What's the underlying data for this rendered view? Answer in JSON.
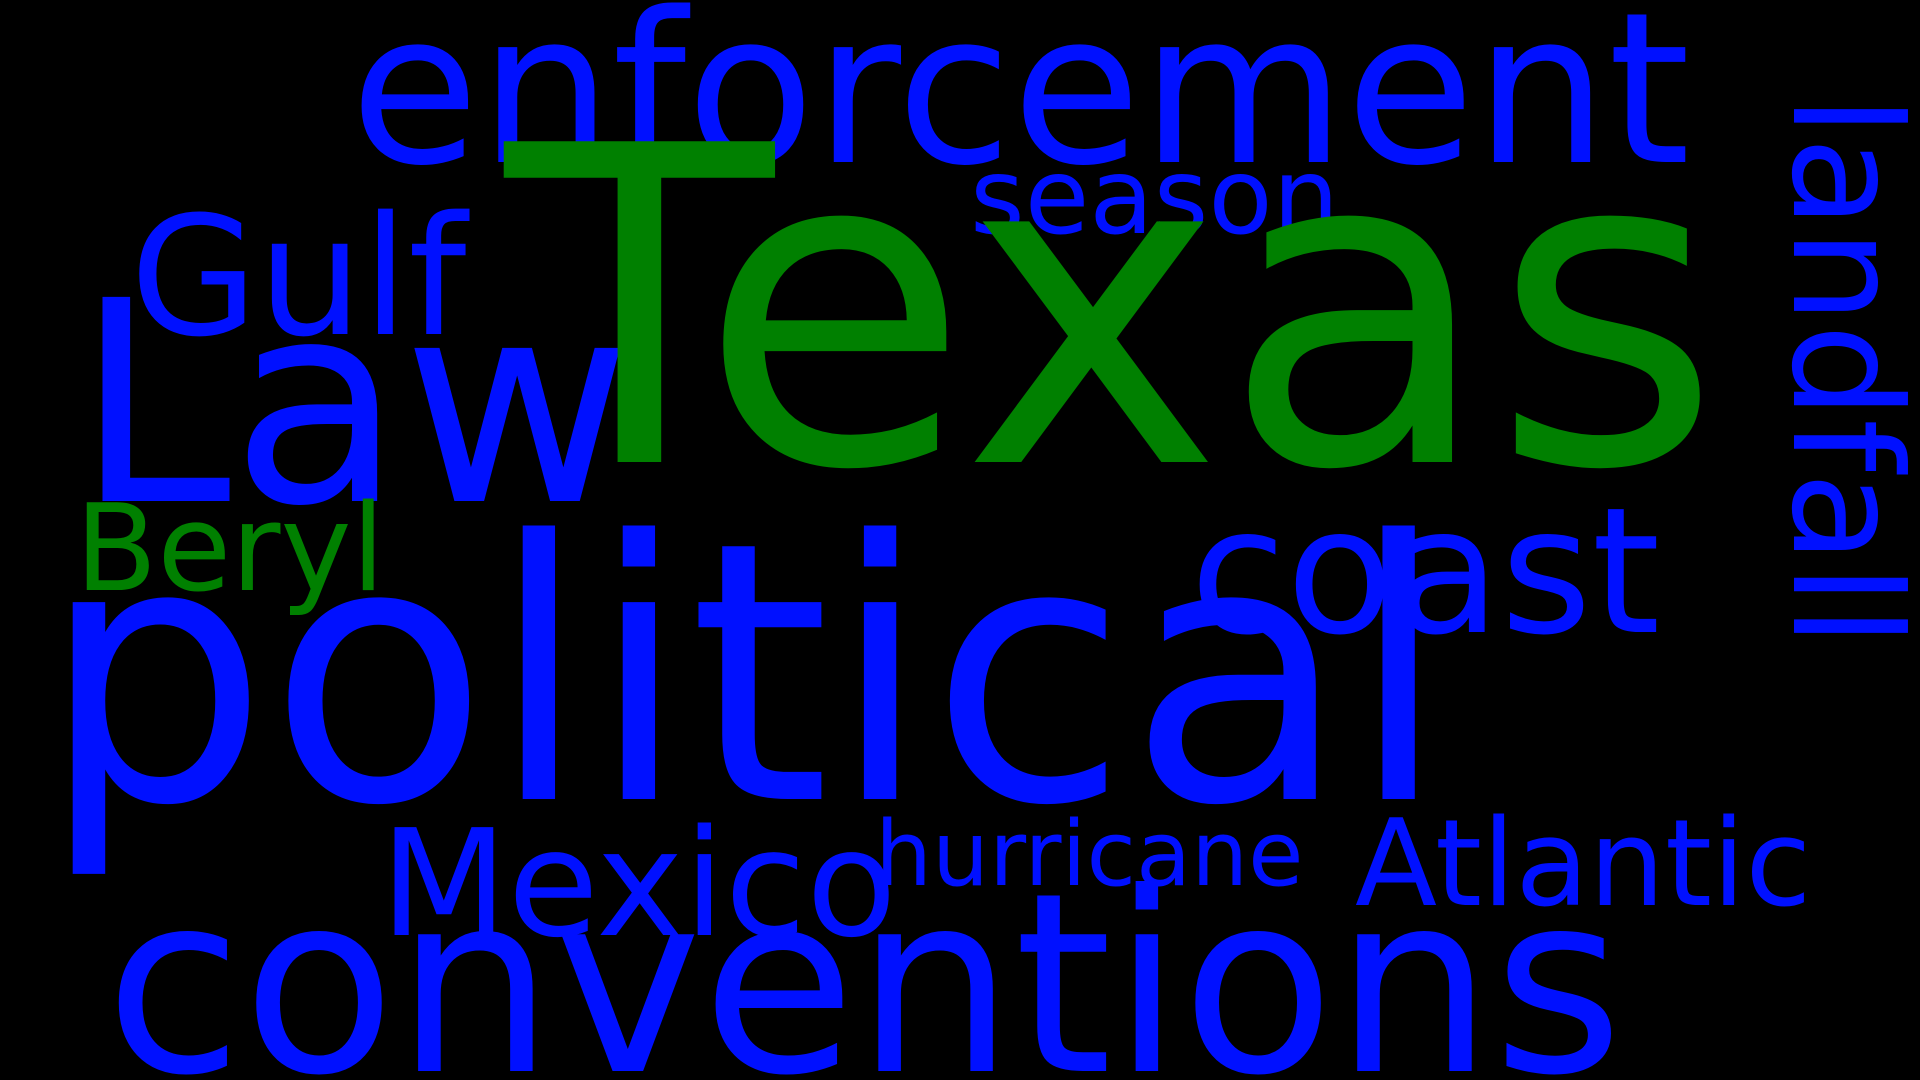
{
  "background_color": "#000000",
  "colors": {
    "blue": "#0010ff",
    "green": "#008000"
  },
  "words": {
    "texas": {
      "text": "Texas",
      "color": "green"
    },
    "political": {
      "text": "political",
      "color": "blue"
    },
    "conventions": {
      "text": "conventions",
      "color": "blue"
    },
    "enforcement": {
      "text": "enforcement",
      "color": "blue"
    },
    "law": {
      "text": "Law",
      "color": "blue"
    },
    "coast": {
      "text": "coast",
      "color": "blue"
    },
    "gulf": {
      "text": "Gulf",
      "color": "blue"
    },
    "mexico": {
      "text": "Mexico",
      "color": "blue"
    },
    "atlantic": {
      "text": "Atlantic",
      "color": "blue"
    },
    "season": {
      "text": "season",
      "color": "blue"
    },
    "beryl": {
      "text": "Beryl",
      "color": "green"
    },
    "hurricane": {
      "text": "hurricane",
      "color": "blue"
    },
    "landfall": {
      "text": "landfall",
      "color": "blue",
      "orientation": "vertical"
    }
  }
}
